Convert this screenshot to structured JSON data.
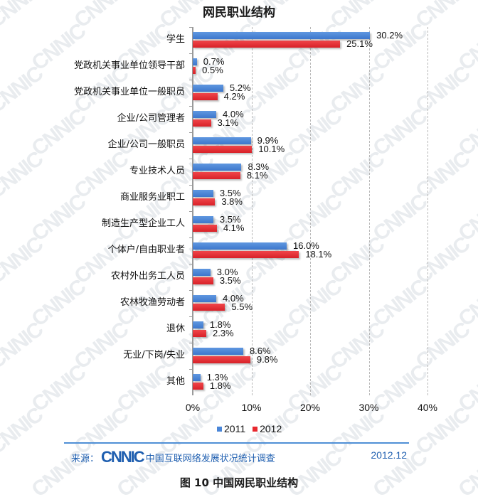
{
  "chart_data": {
    "type": "bar",
    "orientation": "horizontal",
    "title": "网民职业结构",
    "xlabel": "",
    "ylabel": "",
    "xlim": [
      0,
      40
    ],
    "x_ticks": [
      "0%",
      "10%",
      "20%",
      "30%",
      "40%"
    ],
    "grid": "vertical dashed",
    "legend_position": "bottom",
    "categories": [
      "学生",
      "党政机关事业单位领导干部",
      "党政机关事业单位一般职员",
      "企业/公司管理者",
      "企业/公司一般职员",
      "专业技术人员",
      "商业服务业职工",
      "制造生产型企业工人",
      "个体户/自由职业者",
      "农村外出务工人员",
      "农林牧渔劳动者",
      "退休",
      "无业/下岗/失业",
      "其他"
    ],
    "series": [
      {
        "name": "2011",
        "color": "#4a86d8",
        "values": [
          30.2,
          0.7,
          5.2,
          4.0,
          9.9,
          8.3,
          3.5,
          3.5,
          16.0,
          3.0,
          4.0,
          1.8,
          8.6,
          1.3
        ]
      },
      {
        "name": "2012",
        "color": "#e8282e",
        "values": [
          25.1,
          0.5,
          4.2,
          3.1,
          10.1,
          8.1,
          3.8,
          4.1,
          18.1,
          3.5,
          5.5,
          2.3,
          9.8,
          1.8
        ]
      }
    ],
    "value_labels": {
      "2011": [
        "30.2%",
        "0.7%",
        "5.2%",
        "4.0%",
        "9.9%",
        "8.3%",
        "3.5%",
        "3.5%",
        "16.0%",
        "3.0%",
        "4.0%",
        "1.8%",
        "8.6%",
        "1.3%"
      ],
      "2012": [
        "25.1%",
        "0.5%",
        "4.2%",
        "3.1%",
        "10.1%",
        "8.1%",
        "3.8%",
        "4.1%",
        "18.1%",
        "3.5%",
        "5.5%",
        "2.3%",
        "9.8%",
        "1.8%"
      ]
    }
  },
  "footer": {
    "source_label": "来源：",
    "logo_text": "CNNIC",
    "source_text": "中国互联网络发展状况统计调查",
    "date": "2012.12"
  },
  "caption": "图 10 中国网民职业结构",
  "watermark": "CNNIC"
}
